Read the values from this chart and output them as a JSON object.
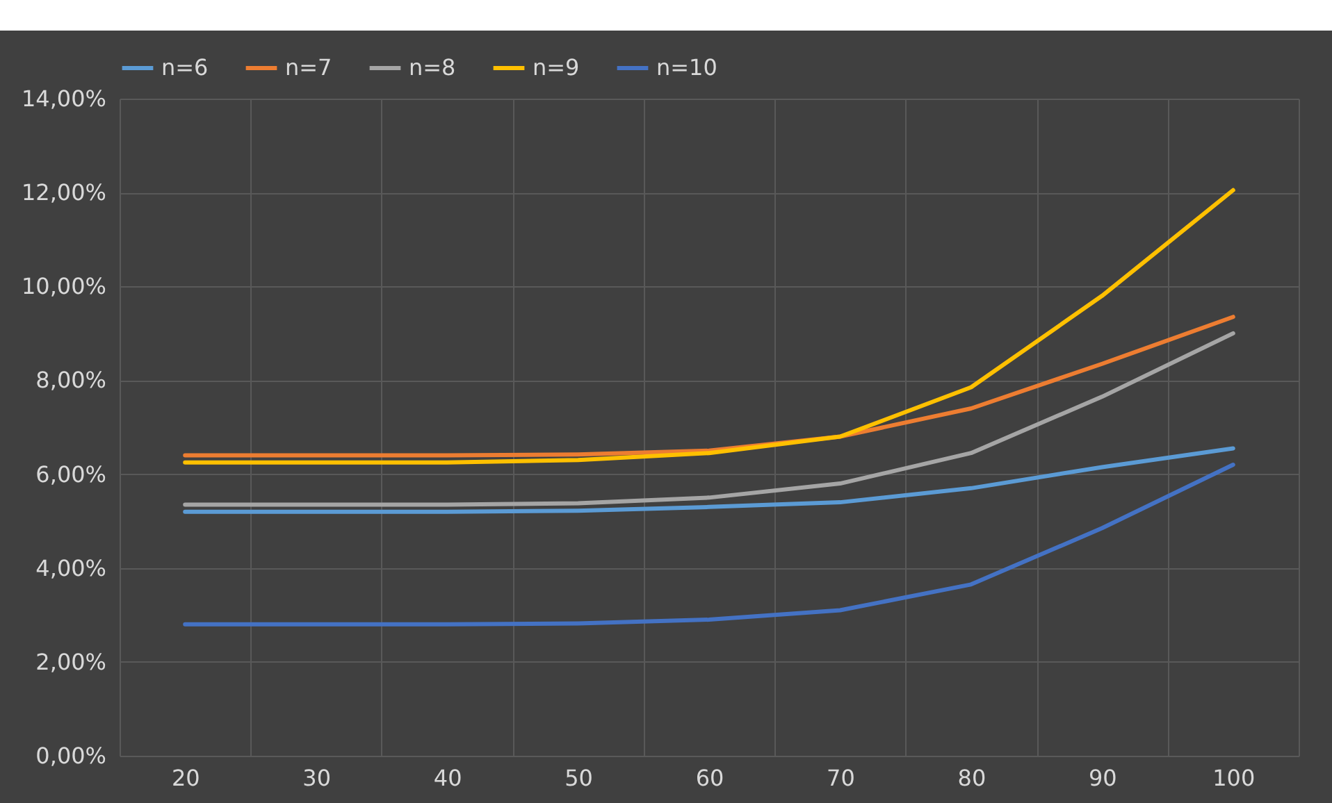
{
  "chart_data": {
    "type": "line",
    "categories": [
      "20",
      "30",
      "40",
      "50",
      "60",
      "70",
      "80",
      "90",
      "100"
    ],
    "series": [
      {
        "name": "n=6",
        "color": "#5b9bd5",
        "values": [
          5.2,
          5.2,
          5.2,
          5.22,
          5.3,
          5.4,
          5.7,
          6.15,
          6.55
        ]
      },
      {
        "name": "n=7",
        "color": "#ed7d31",
        "values": [
          6.4,
          6.4,
          6.4,
          6.42,
          6.5,
          6.8,
          7.4,
          8.35,
          9.35
        ]
      },
      {
        "name": "n=8",
        "color": "#a5a5a5",
        "values": [
          5.35,
          5.35,
          5.35,
          5.38,
          5.5,
          5.8,
          6.45,
          7.65,
          9.0
        ]
      },
      {
        "name": "n=9",
        "color": "#ffc000",
        "values": [
          6.25,
          6.25,
          6.25,
          6.3,
          6.45,
          6.8,
          7.85,
          9.8,
          12.05
        ]
      },
      {
        "name": "n=10",
        "color": "#4472c4",
        "values": [
          2.8,
          2.8,
          2.8,
          2.82,
          2.9,
          3.1,
          3.65,
          4.85,
          6.2
        ]
      }
    ],
    "ylim": [
      0,
      14
    ],
    "yticks": [
      {
        "value": 0,
        "label": "0,00%"
      },
      {
        "value": 2,
        "label": "2,00%"
      },
      {
        "value": 4,
        "label": "4,00%"
      },
      {
        "value": 6,
        "label": "6,00%"
      },
      {
        "value": 8,
        "label": "8,00%"
      },
      {
        "value": 10,
        "label": "10,00%"
      },
      {
        "value": 12,
        "label": "12,00%"
      },
      {
        "value": 14,
        "label": "14,00%"
      }
    ],
    "grid": true,
    "legend": "top",
    "marker": "none",
    "line_style": "solid"
  }
}
